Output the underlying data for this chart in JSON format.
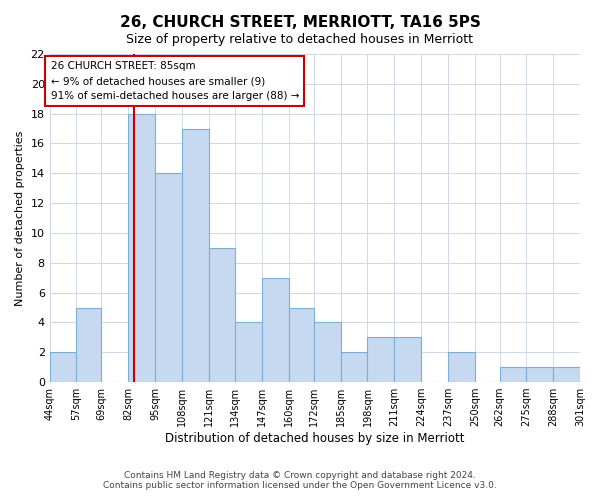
{
  "title": "26, CHURCH STREET, MERRIOTT, TA16 5PS",
  "subtitle": "Size of property relative to detached houses in Merriott",
  "xlabel": "Distribution of detached houses by size in Merriott",
  "ylabel": "Number of detached properties",
  "bins": [
    44,
    57,
    69,
    82,
    95,
    108,
    121,
    134,
    147,
    160,
    172,
    185,
    198,
    211,
    224,
    237,
    250,
    262,
    275,
    288,
    301
  ],
  "bin_labels": [
    "44sqm",
    "57sqm",
    "69sqm",
    "82sqm",
    "95sqm",
    "108sqm",
    "121sqm",
    "134sqm",
    "147sqm",
    "160sqm",
    "172sqm",
    "185sqm",
    "198sqm",
    "211sqm",
    "224sqm",
    "237sqm",
    "250sqm",
    "262sqm",
    "275sqm",
    "288sqm",
    "301sqm"
  ],
  "counts": [
    2,
    5,
    0,
    18,
    14,
    17,
    9,
    4,
    7,
    5,
    4,
    2,
    3,
    3,
    0,
    2,
    0,
    1,
    1,
    1
  ],
  "bar_color": "#c6d9f0",
  "bar_edgecolor": "#7bafd4",
  "property_line_x": 85,
  "property_line_color": "#cc0000",
  "annotation_title": "26 CHURCH STREET: 85sqm",
  "annotation_line1": "← 9% of detached houses are smaller (9)",
  "annotation_line2": "91% of semi-detached houses are larger (88) →",
  "annotation_box_edgecolor": "#cc0000",
  "ylim": [
    0,
    22
  ],
  "yticks": [
    0,
    2,
    4,
    6,
    8,
    10,
    12,
    14,
    16,
    18,
    20,
    22
  ],
  "footer_line1": "Contains HM Land Registry data © Crown copyright and database right 2024.",
  "footer_line2": "Contains public sector information licensed under the Open Government Licence v3.0.",
  "background_color": "#ffffff",
  "grid_color": "#d0d8e8"
}
